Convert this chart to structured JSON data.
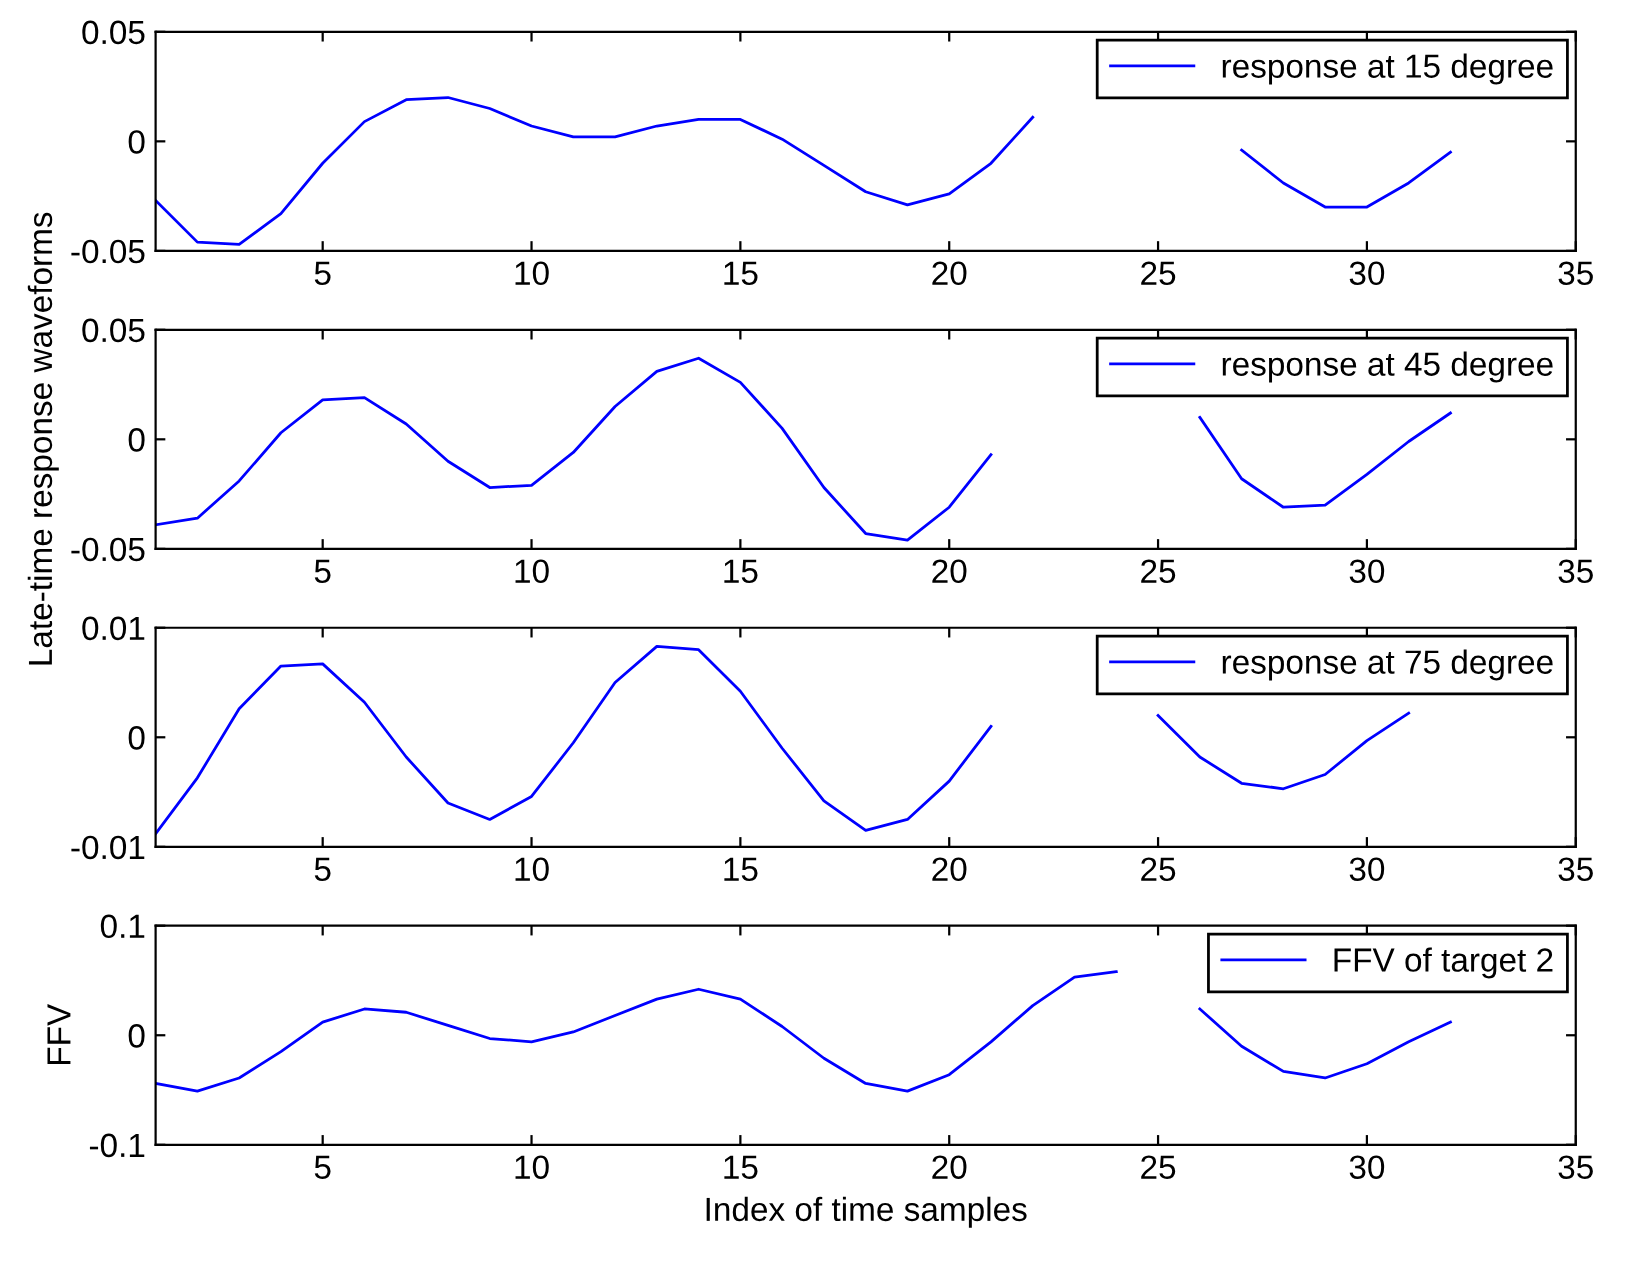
{
  "chart_data": [
    {
      "type": "line",
      "x": [
        1,
        2,
        3,
        4,
        5,
        6,
        7,
        8,
        9,
        10,
        11,
        12,
        13,
        14,
        15,
        16,
        17,
        18,
        19,
        20,
        21,
        22,
        23,
        24,
        25,
        26,
        27,
        28,
        29,
        30,
        31,
        32
      ],
      "series": [
        {
          "name": "response at 15 degree",
          "color": "#0000ff",
          "values": [
            -0.027,
            -0.046,
            -0.047,
            -0.033,
            -0.01,
            0.009,
            0.019,
            0.02,
            0.015,
            0.007,
            0.002,
            0.002,
            0.007,
            0.01,
            0.01,
            0.001,
            -0.011,
            -0.023,
            -0.029,
            -0.024,
            -0.01,
            0.011,
            null,
            null,
            null,
            null,
            -0.004,
            -0.019,
            -0.03,
            -0.03,
            -0.019,
            -0.005
          ]
        }
      ],
      "xlim": [
        1,
        35
      ],
      "xticks": [
        5,
        10,
        15,
        20,
        25,
        30,
        35
      ],
      "ylim": [
        -0.05,
        0.05
      ],
      "yticks": [
        -0.05,
        0,
        0.05
      ],
      "legend": "top right",
      "grid": false
    },
    {
      "type": "line",
      "x": [
        1,
        2,
        3,
        4,
        5,
        6,
        7,
        8,
        9,
        10,
        11,
        12,
        13,
        14,
        15,
        16,
        17,
        18,
        19,
        20,
        21,
        22,
        23,
        24,
        25,
        26,
        27,
        28,
        29,
        30,
        31,
        32
      ],
      "ylabel": "Late-time response waveforms",
      "series": [
        {
          "name": "response at 45 degree",
          "color": "#0000ff",
          "values": [
            -0.039,
            -0.036,
            -0.019,
            0.003,
            0.018,
            0.019,
            0.007,
            -0.01,
            -0.022,
            -0.021,
            -0.006,
            0.015,
            0.031,
            0.037,
            0.026,
            0.005,
            -0.022,
            -0.043,
            -0.046,
            -0.031,
            -0.007,
            null,
            null,
            null,
            null,
            0.01,
            -0.018,
            -0.031,
            -0.03,
            -0.016,
            -0.001,
            0.012
          ]
        }
      ],
      "xlim": [
        1,
        35
      ],
      "xticks": [
        5,
        10,
        15,
        20,
        25,
        30,
        35
      ],
      "ylim": [
        -0.05,
        0.05
      ],
      "yticks": [
        -0.05,
        0,
        0.05
      ],
      "legend": "top right",
      "grid": false
    },
    {
      "type": "line",
      "series": [
        {
          "name": "response at 75 degree",
          "color": "#0000ff",
          "x": [
            1,
            2,
            3,
            4,
            5,
            6,
            7,
            8,
            9,
            10,
            11,
            12,
            13,
            14,
            15,
            16,
            17,
            18,
            19,
            20,
            21,
            22,
            23,
            24,
            25,
            26,
            27,
            28,
            29,
            30,
            31
          ],
          "values": [
            -0.0088,
            -0.0037,
            0.0026,
            0.0065,
            0.0067,
            0.0032,
            -0.0018,
            -0.006,
            -0.0075,
            -0.0054,
            -0.0005,
            0.005,
            0.0083,
            0.008,
            0.0042,
            -0.001,
            -0.0058,
            -0.0085,
            -0.0075,
            -0.004,
            0.001,
            null,
            null,
            null,
            0.002,
            -0.0018,
            -0.0042,
            -0.0047,
            -0.0034,
            -0.0003,
            0.0022
          ]
        }
      ],
      "xlim": [
        1,
        35
      ],
      "xticks": [
        5,
        10,
        15,
        20,
        25,
        30,
        35
      ],
      "ylim": [
        -0.01,
        0.01
      ],
      "yticks": [
        -0.01,
        0,
        0.01
      ],
      "legend": "top right",
      "grid": false
    },
    {
      "type": "line",
      "x": [
        1,
        2,
        3,
        4,
        5,
        6,
        7,
        8,
        9,
        10,
        11,
        12,
        13,
        14,
        15,
        16,
        17,
        18,
        19,
        20,
        21,
        22,
        23,
        24,
        25,
        26,
        27,
        28,
        29,
        30,
        31,
        32
      ],
      "xlabel": "Index of time samples",
      "ylabel": "FFV",
      "series": [
        {
          "name": "FFV of target 2",
          "color": "#0000ff",
          "values": [
            -0.044,
            -0.051,
            -0.039,
            -0.015,
            0.012,
            0.024,
            0.021,
            0.009,
            -0.003,
            -0.006,
            0.003,
            0.018,
            0.033,
            0.042,
            0.033,
            0.008,
            -0.021,
            -0.044,
            -0.051,
            -0.036,
            -0.006,
            0.027,
            0.053,
            0.058,
            null,
            0.024,
            -0.01,
            -0.033,
            -0.039,
            -0.026,
            -0.006,
            0.012
          ]
        }
      ],
      "xlim": [
        1,
        35
      ],
      "xticks": [
        5,
        10,
        15,
        20,
        25,
        30,
        35
      ],
      "ylim": [
        -0.1,
        0.1
      ],
      "yticks": [
        -0.1,
        0,
        0.1
      ],
      "legend": "top right",
      "grid": false
    }
  ]
}
